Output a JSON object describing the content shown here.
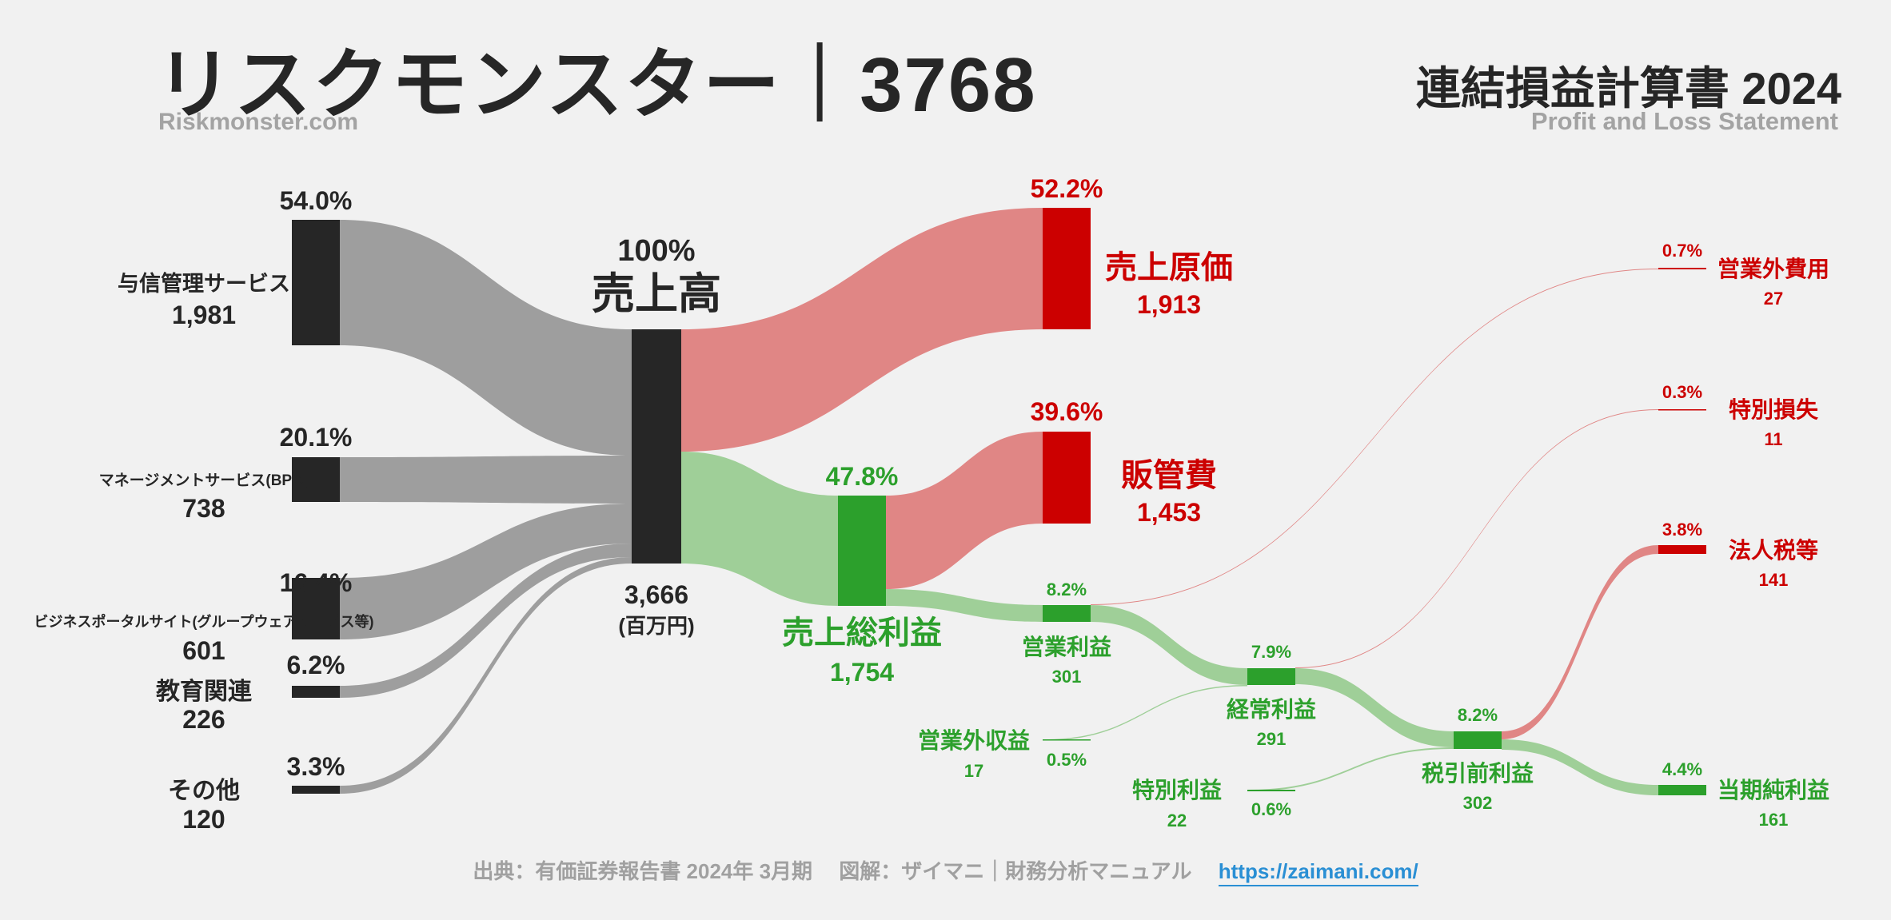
{
  "header": {
    "title": "リスクモンスター｜3768",
    "subtitle": "Riskmonster.com",
    "statement_title": "連結損益計算書 2024",
    "statement_subtitle": "Profit and Loss Statement"
  },
  "footer": {
    "source": "出典：有価証券報告書 2024年 3月期　 図解：ザイマニ｜財務分析マニュアル",
    "link": "https://zaimani.com/"
  },
  "colors": {
    "revenue": "#9e9e9e",
    "node_dark": "#262626",
    "cost": "#e08685",
    "cost_node": "#cc0000",
    "profit": "#9fcf98",
    "profit_node": "#2ca02c"
  },
  "chart_data": {
    "type": "sankey",
    "unit": "(百万円)",
    "revenue_total": {
      "label": "売上高",
      "pct": "100%",
      "value": "3,666"
    },
    "segments": [
      {
        "name": "与信管理サービス",
        "value": "1,981",
        "pct": "54.0%"
      },
      {
        "name": "マネージメントサービス(BPO)",
        "value": "738",
        "pct": "20.1%"
      },
      {
        "name": "ビジネスポータルサイト(グループウェアサービス等)",
        "value": "601",
        "pct": "16.4%"
      },
      {
        "name": "教育関連",
        "value": "226",
        "pct": "6.2%"
      },
      {
        "name": "その他",
        "value": "120",
        "pct": "3.3%"
      }
    ],
    "costs": [
      {
        "name": "売上原価",
        "value": "1,913",
        "pct": "52.2%"
      },
      {
        "name": "販管費",
        "value": "1,453",
        "pct": "39.6%"
      },
      {
        "name": "営業外費用",
        "value": "27",
        "pct": "0.7%"
      },
      {
        "name": "特別損失",
        "value": "11",
        "pct": "0.3%"
      },
      {
        "name": "法人税等",
        "value": "141",
        "pct": "3.8%"
      }
    ],
    "profits": [
      {
        "name": "売上総利益",
        "value": "1,754",
        "pct": "47.8%"
      },
      {
        "name": "営業利益",
        "value": "301",
        "pct": "8.2%"
      },
      {
        "name": "経常利益",
        "value": "291",
        "pct": "7.9%"
      },
      {
        "name": "税引前利益",
        "value": "302",
        "pct": "8.2%"
      },
      {
        "name": "当期純利益",
        "value": "161",
        "pct": "4.4%"
      }
    ],
    "other_income": [
      {
        "name": "営業外収益",
        "value": "17",
        "pct": "0.5%"
      },
      {
        "name": "特別利益",
        "value": "22",
        "pct": "0.6%"
      }
    ]
  }
}
